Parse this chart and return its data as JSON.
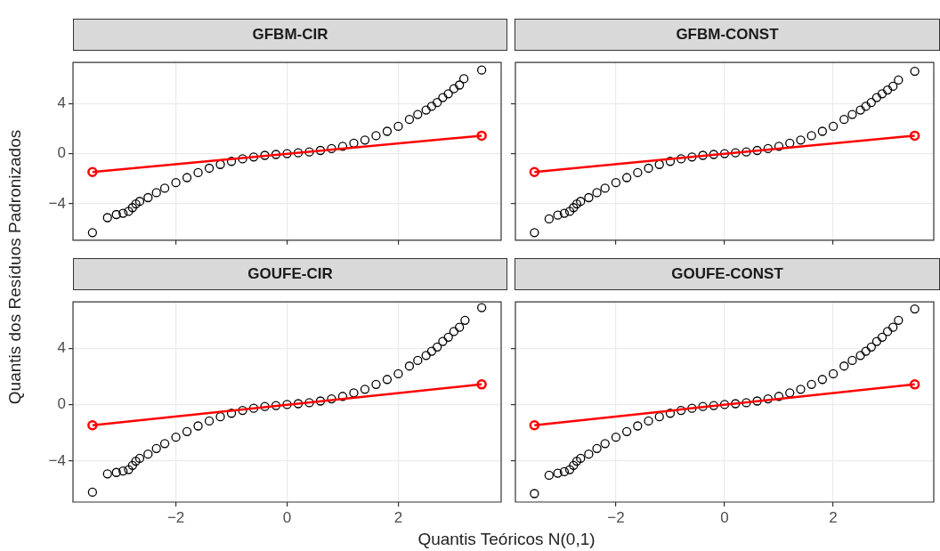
{
  "chart_data": [
    {
      "type": "scatter",
      "title": "GFBM-CIR",
      "ylabel": "Quantis dos Resíduos Padronizados",
      "xlim": [
        -3.85,
        3.85
      ],
      "xticks": [
        -2,
        0,
        2
      ],
      "ylim": [
        -6.9,
        7.3
      ],
      "yticks": [
        -4,
        0,
        4
      ],
      "grid": true,
      "marker": "circle",
      "tick_labels": "y",
      "series": [
        {
          "color": "#000000",
          "x": [
            -3.5,
            -3.23,
            -3.07,
            -2.95,
            -2.85,
            -2.78,
            -2.72,
            -2.65,
            -2.5,
            -2.35,
            -2.2,
            -2.0,
            -1.8,
            -1.6,
            -1.4,
            -1.2,
            -1.0,
            -0.8,
            -0.6,
            -0.4,
            -0.2,
            0,
            0.2,
            0.4,
            0.6,
            0.8,
            1.0,
            1.2,
            1.4,
            1.6,
            1.8,
            2.0,
            2.2,
            2.35,
            2.5,
            2.6,
            2.7,
            2.8,
            2.9,
            3.0,
            3.1,
            3.18,
            3.5
          ],
          "values": [
            -6.3,
            -5.1,
            -4.85,
            -4.75,
            -4.6,
            -4.3,
            -4.0,
            -3.8,
            -3.5,
            -3.1,
            -2.75,
            -2.3,
            -1.9,
            -1.5,
            -1.15,
            -0.85,
            -0.6,
            -0.4,
            -0.25,
            -0.12,
            -0.05,
            0.02,
            0.08,
            0.15,
            0.27,
            0.42,
            0.6,
            0.85,
            1.1,
            1.45,
            1.8,
            2.2,
            2.75,
            3.15,
            3.5,
            3.8,
            4.1,
            4.5,
            4.8,
            5.2,
            5.5,
            6.0,
            6.7
          ]
        },
        {
          "type": "line",
          "color": "#ff0000",
          "x": [
            -3.5,
            3.5
          ],
          "values": [
            -1.45,
            1.45
          ]
        }
      ]
    },
    {
      "type": "scatter",
      "title": "GFBM-CONST",
      "xlim": [
        -3.85,
        3.85
      ],
      "xticks": [
        -2,
        0,
        2
      ],
      "ylim": [
        -6.9,
        7.3
      ],
      "yticks": [
        -4,
        0,
        4
      ],
      "grid": true,
      "marker": "circle",
      "tick_labels": false,
      "series": [
        {
          "color": "#000000",
          "x": [
            -3.5,
            -3.23,
            -3.07,
            -2.95,
            -2.85,
            -2.78,
            -2.72,
            -2.65,
            -2.5,
            -2.35,
            -2.2,
            -2.0,
            -1.8,
            -1.6,
            -1.4,
            -1.2,
            -1.0,
            -0.8,
            -0.6,
            -0.4,
            -0.2,
            0,
            0.2,
            0.4,
            0.6,
            0.8,
            1.0,
            1.2,
            1.4,
            1.6,
            1.8,
            2.0,
            2.2,
            2.35,
            2.5,
            2.6,
            2.7,
            2.8,
            2.9,
            3.0,
            3.1,
            3.2,
            3.5
          ],
          "values": [
            -6.3,
            -5.2,
            -4.9,
            -4.75,
            -4.6,
            -4.3,
            -4.0,
            -3.8,
            -3.5,
            -3.1,
            -2.75,
            -2.3,
            -1.9,
            -1.5,
            -1.15,
            -0.85,
            -0.6,
            -0.4,
            -0.25,
            -0.12,
            -0.05,
            0.02,
            0.08,
            0.15,
            0.27,
            0.42,
            0.6,
            0.85,
            1.1,
            1.45,
            1.8,
            2.2,
            2.75,
            3.15,
            3.5,
            3.8,
            4.1,
            4.5,
            4.8,
            5.1,
            5.4,
            5.9,
            6.6
          ]
        },
        {
          "type": "line",
          "color": "#ff0000",
          "x": [
            -3.5,
            3.5
          ],
          "values": [
            -1.45,
            1.45
          ]
        }
      ]
    },
    {
      "type": "scatter",
      "title": "GOUFE-CIR",
      "xlim": [
        -3.85,
        3.85
      ],
      "xticks": [
        -2,
        0,
        2
      ],
      "ylim": [
        -6.9,
        7.3
      ],
      "yticks": [
        -4,
        0,
        4
      ],
      "grid": true,
      "marker": "circle",
      "series": [
        {
          "color": "#000000",
          "x": [
            -3.5,
            -3.23,
            -3.07,
            -2.95,
            -2.85,
            -2.78,
            -2.72,
            -2.65,
            -2.5,
            -2.35,
            -2.2,
            -2.0,
            -1.8,
            -1.6,
            -1.4,
            -1.2,
            -1.0,
            -0.8,
            -0.6,
            -0.4,
            -0.2,
            0,
            0.2,
            0.4,
            0.6,
            0.8,
            1.0,
            1.2,
            1.4,
            1.6,
            1.8,
            2.0,
            2.2,
            2.35,
            2.5,
            2.6,
            2.7,
            2.8,
            2.9,
            3.0,
            3.1,
            3.2,
            3.5
          ],
          "values": [
            -6.2,
            -4.9,
            -4.8,
            -4.7,
            -4.6,
            -4.3,
            -4.0,
            -3.8,
            -3.5,
            -3.1,
            -2.75,
            -2.3,
            -1.9,
            -1.5,
            -1.15,
            -0.85,
            -0.6,
            -0.4,
            -0.25,
            -0.12,
            -0.05,
            0.02,
            0.08,
            0.15,
            0.27,
            0.42,
            0.6,
            0.85,
            1.1,
            1.45,
            1.8,
            2.2,
            2.75,
            3.15,
            3.5,
            3.8,
            4.1,
            4.5,
            4.8,
            5.2,
            5.5,
            6.0,
            6.9
          ]
        },
        {
          "type": "line",
          "color": "#ff0000",
          "x": [
            -3.5,
            3.5
          ],
          "values": [
            -1.45,
            1.45
          ]
        }
      ]
    },
    {
      "type": "scatter",
      "title": "GOUFE-CONST",
      "xlabel": "Quantis Teóricos N(0,1)",
      "xlim": [
        -3.85,
        3.85
      ],
      "xticks": [
        -2,
        0,
        2
      ],
      "ylim": [
        -6.9,
        7.3
      ],
      "yticks": [
        -4,
        0,
        4
      ],
      "grid": true,
      "marker": "circle",
      "tick_labels": "x",
      "series": [
        {
          "color": "#000000",
          "x": [
            -3.5,
            -3.23,
            -3.07,
            -2.95,
            -2.85,
            -2.78,
            -2.72,
            -2.65,
            -2.5,
            -2.35,
            -2.2,
            -2.0,
            -1.8,
            -1.6,
            -1.4,
            -1.2,
            -1.0,
            -0.8,
            -0.6,
            -0.4,
            -0.2,
            0,
            0.2,
            0.4,
            0.6,
            0.8,
            1.0,
            1.2,
            1.4,
            1.6,
            1.8,
            2.0,
            2.2,
            2.35,
            2.5,
            2.6,
            2.7,
            2.8,
            2.9,
            3.0,
            3.1,
            3.2,
            3.5
          ],
          "values": [
            -6.3,
            -5.0,
            -4.85,
            -4.75,
            -4.6,
            -4.3,
            -4.0,
            -3.8,
            -3.5,
            -3.1,
            -2.75,
            -2.3,
            -1.9,
            -1.5,
            -1.15,
            -0.85,
            -0.6,
            -0.4,
            -0.25,
            -0.12,
            -0.05,
            0.02,
            0.08,
            0.15,
            0.27,
            0.42,
            0.6,
            0.85,
            1.1,
            1.45,
            1.8,
            2.2,
            2.75,
            3.15,
            3.5,
            3.8,
            4.1,
            4.5,
            4.8,
            5.2,
            5.5,
            6.0,
            6.8
          ]
        },
        {
          "type": "line",
          "color": "#ff0000",
          "x": [
            -3.5,
            3.5
          ],
          "values": [
            -1.45,
            1.45
          ]
        }
      ]
    }
  ]
}
